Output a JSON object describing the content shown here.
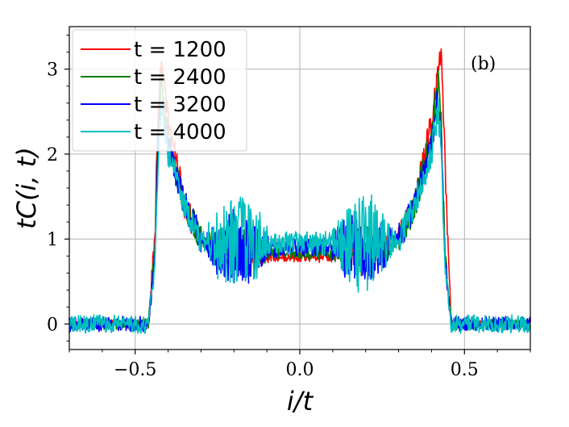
{
  "chart_data": {
    "type": "line",
    "panel_label": "(b)",
    "xlabel": "i/t",
    "ylabel": "tC(i, t)",
    "xlim": [
      -0.7,
      0.7
    ],
    "ylim": [
      -0.3,
      3.5
    ],
    "x_ticks": [
      -0.5,
      0.0,
      0.5
    ],
    "x_tick_labels": [
      "−0.5",
      "0.0",
      "0.5"
    ],
    "y_ticks": [
      0,
      1,
      2,
      3
    ],
    "y_tick_labels": [
      "0",
      "1",
      "2",
      "3"
    ],
    "grid": true,
    "legend_position": "top-left",
    "series": [
      {
        "name": "t = 1200",
        "color": "#ff0000",
        "edge": 0.435,
        "peak": 3.22,
        "valley": 0.78,
        "x": [
          -0.7,
          -0.46,
          -0.44,
          -0.43,
          -0.42,
          -0.4,
          -0.35,
          -0.3,
          -0.25,
          -0.2,
          -0.15,
          -0.1,
          -0.05,
          0.0,
          0.05,
          0.1,
          0.15,
          0.2,
          0.25,
          0.3,
          0.35,
          0.4,
          0.42,
          0.43,
          0.44,
          0.46,
          0.7
        ],
        "y": [
          0.0,
          0.0,
          1.0,
          2.6,
          3.18,
          2.4,
          1.4,
          1.0,
          0.9,
          0.85,
          0.83,
          0.8,
          0.78,
          0.78,
          0.78,
          0.8,
          0.83,
          0.85,
          0.9,
          1.0,
          1.4,
          2.4,
          3.0,
          3.22,
          2.0,
          0.0,
          0.0
        ]
      },
      {
        "name": "t = 2400",
        "color": "#008000",
        "edge": 0.425,
        "peak": 2.88,
        "valley": 0.85,
        "x": [
          -0.7,
          -0.46,
          -0.44,
          -0.43,
          -0.42,
          -0.4,
          -0.35,
          -0.3,
          -0.25,
          -0.2,
          -0.15,
          -0.1,
          -0.05,
          0.0,
          0.05,
          0.1,
          0.15,
          0.2,
          0.25,
          0.3,
          0.35,
          0.4,
          0.42,
          0.43,
          0.44,
          0.46,
          0.7
        ],
        "y": [
          0.0,
          0.0,
          0.9,
          2.3,
          2.88,
          2.2,
          1.4,
          1.0,
          0.9,
          0.88,
          0.86,
          0.85,
          0.85,
          0.85,
          0.85,
          0.85,
          0.86,
          0.88,
          0.9,
          1.0,
          1.4,
          2.2,
          2.88,
          2.3,
          0.9,
          0.0,
          0.0
        ]
      },
      {
        "name": "t = 3200",
        "color": "#0000ff",
        "edge": 0.42,
        "peak": 2.68,
        "valley": 0.9,
        "x": [
          -0.7,
          -0.46,
          -0.44,
          -0.43,
          -0.42,
          -0.4,
          -0.35,
          -0.3,
          -0.25,
          -0.2,
          -0.15,
          -0.1,
          -0.05,
          0.0,
          0.05,
          0.1,
          0.15,
          0.2,
          0.25,
          0.3,
          0.35,
          0.4,
          0.42,
          0.43,
          0.44,
          0.46,
          0.7
        ],
        "y": [
          0.0,
          0.0,
          0.8,
          2.1,
          2.68,
          2.1,
          1.4,
          1.0,
          0.9,
          0.9,
          0.9,
          0.9,
          0.9,
          0.9,
          0.9,
          0.9,
          0.9,
          0.9,
          0.9,
          1.0,
          1.4,
          2.1,
          2.68,
          2.1,
          0.8,
          0.0,
          0.0
        ]
      },
      {
        "name": "t = 4000",
        "color": "#00bfbf",
        "edge": 0.415,
        "peak": 2.55,
        "valley": 0.95,
        "x": [
          -0.7,
          -0.46,
          -0.44,
          -0.43,
          -0.42,
          -0.4,
          -0.35,
          -0.3,
          -0.25,
          -0.2,
          -0.15,
          -0.1,
          -0.05,
          0.0,
          0.05,
          0.1,
          0.15,
          0.2,
          0.25,
          0.3,
          0.35,
          0.4,
          0.42,
          0.43,
          0.44,
          0.46,
          0.7
        ],
        "y": [
          0.0,
          0.0,
          0.7,
          2.0,
          2.55,
          2.0,
          1.4,
          1.0,
          0.95,
          0.95,
          0.95,
          0.95,
          0.95,
          0.95,
          0.95,
          0.95,
          0.95,
          0.95,
          0.95,
          1.0,
          1.4,
          2.0,
          2.55,
          2.0,
          0.7,
          0.0,
          0.0
        ]
      }
    ]
  }
}
